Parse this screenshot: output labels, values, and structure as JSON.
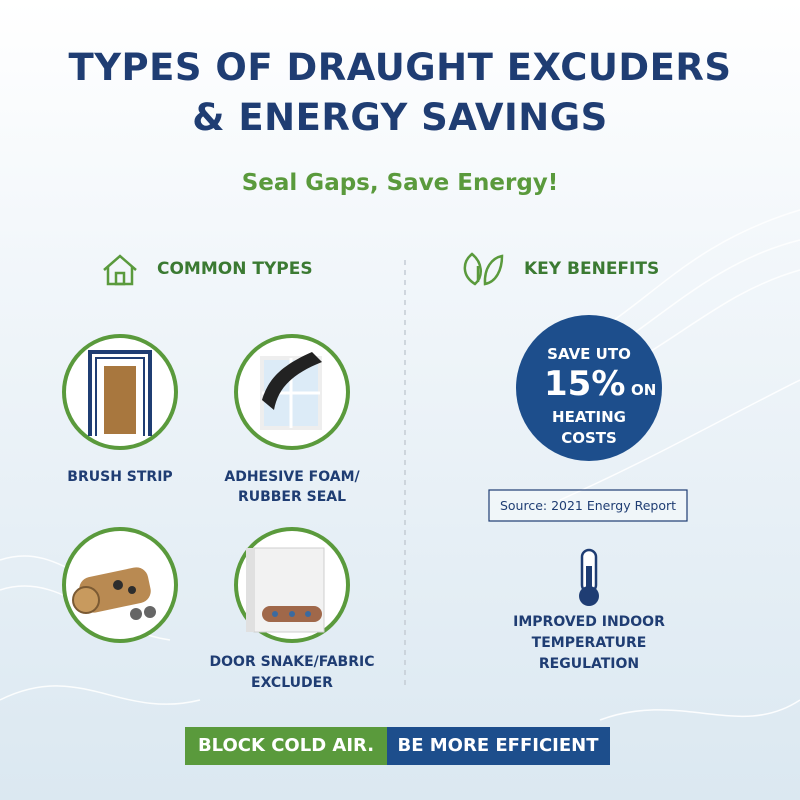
{
  "header": {
    "title_lines": [
      "TYPES OF DRAUGHT EXCUDERS",
      "& ENERGY SAVINGS"
    ],
    "subtitle": "Seal Gaps, Save Energy!"
  },
  "common_types": {
    "heading": "COMMON TYPES",
    "items": [
      {
        "label_lines": [
          "BRUSH STRIP"
        ]
      },
      {
        "label_lines": [
          "ADHESIVE FOAM/",
          "RUBBER SEAL"
        ]
      },
      {
        "label_lines": []
      },
      {
        "label_lines": [
          "DOOR SNAKE/FABRIC",
          "EXCLUDER"
        ]
      }
    ]
  },
  "key_benefits": {
    "heading": "KEY BENEFITS",
    "savings": {
      "top": "SAVE UTO",
      "figure": "15%",
      "suffix": "ON",
      "lines": [
        "HEATING",
        "COSTS"
      ]
    },
    "source": "Source: 2021 Energy Report",
    "benefit_lines": [
      "IMPROVED INDOOR",
      "TEMPERATURE",
      "REGULATION"
    ]
  },
  "banner": {
    "left": "BLOCK COLD AIR.",
    "right": "BE MORE EFFICIENT"
  }
}
